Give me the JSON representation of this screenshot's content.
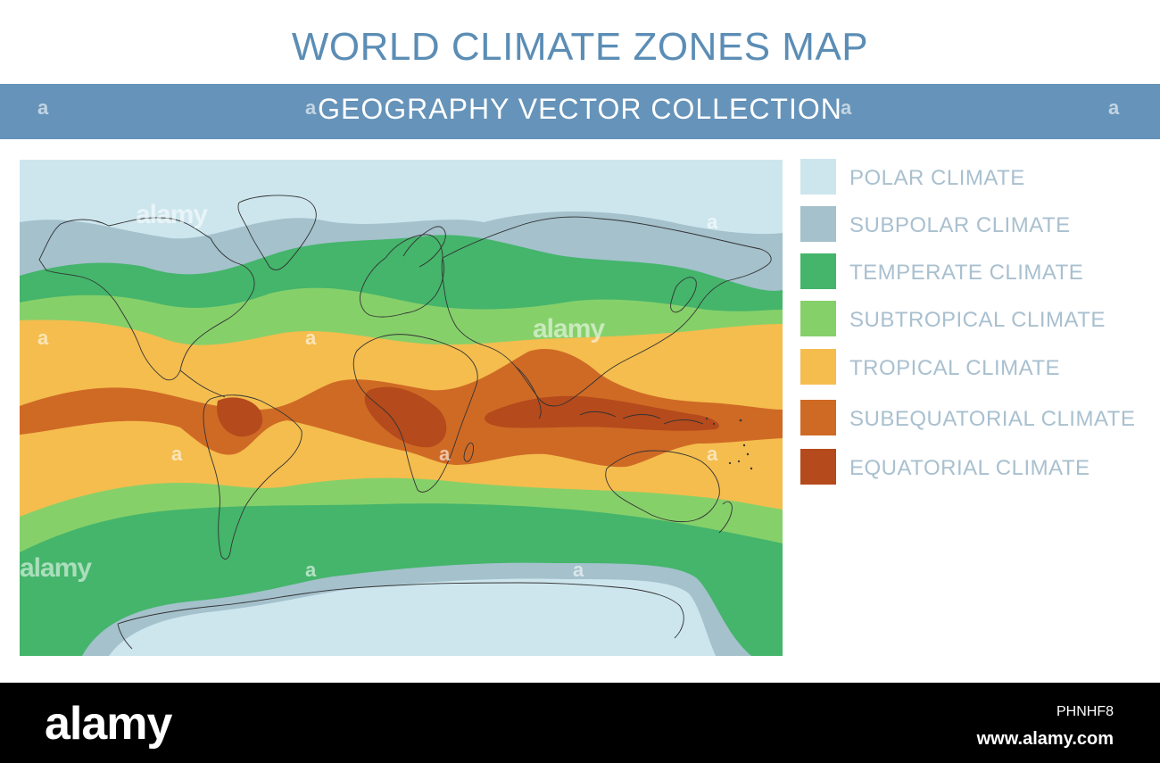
{
  "header": {
    "title": "WORLD CLIMATE ZONES MAP",
    "subtitle": "GEOGRAPHY VECTOR COLLECTION"
  },
  "colors": {
    "banner": "#6693b9",
    "title": "#5b8db5",
    "polar": "#cde6ee",
    "subpolar": "#a4c1cc",
    "temperate": "#44b56b",
    "subtropical": "#86d06a",
    "tropical": "#f4bd4e",
    "subequatorial": "#cf6a25",
    "equatorial": "#b54a1c",
    "outline": "#333333"
  },
  "legend": {
    "items": [
      {
        "label": "POLAR CLIMATE",
        "color": "#cde6ee"
      },
      {
        "label": "SUBPOLAR CLIMATE",
        "color": "#a4c1cc"
      },
      {
        "label": "TEMPERATE CLIMATE",
        "color": "#44b56b"
      },
      {
        "label": "SUBTROPICAL CLIMATE",
        "color": "#86d06a"
      },
      {
        "label": "TROPICAL CLIMATE",
        "color": "#f4bd4e"
      },
      {
        "label": "SUBEQUATORIAL CLIMATE",
        "color": "#cf6a25"
      },
      {
        "label": "EQUATORIAL CLIMATE",
        "color": "#b54a1c"
      }
    ]
  },
  "watermark": {
    "text": "alamy",
    "mark": "a"
  },
  "footer": {
    "logo": "alamy",
    "image_id": "PHNHF8",
    "url": "www.alamy.com"
  }
}
